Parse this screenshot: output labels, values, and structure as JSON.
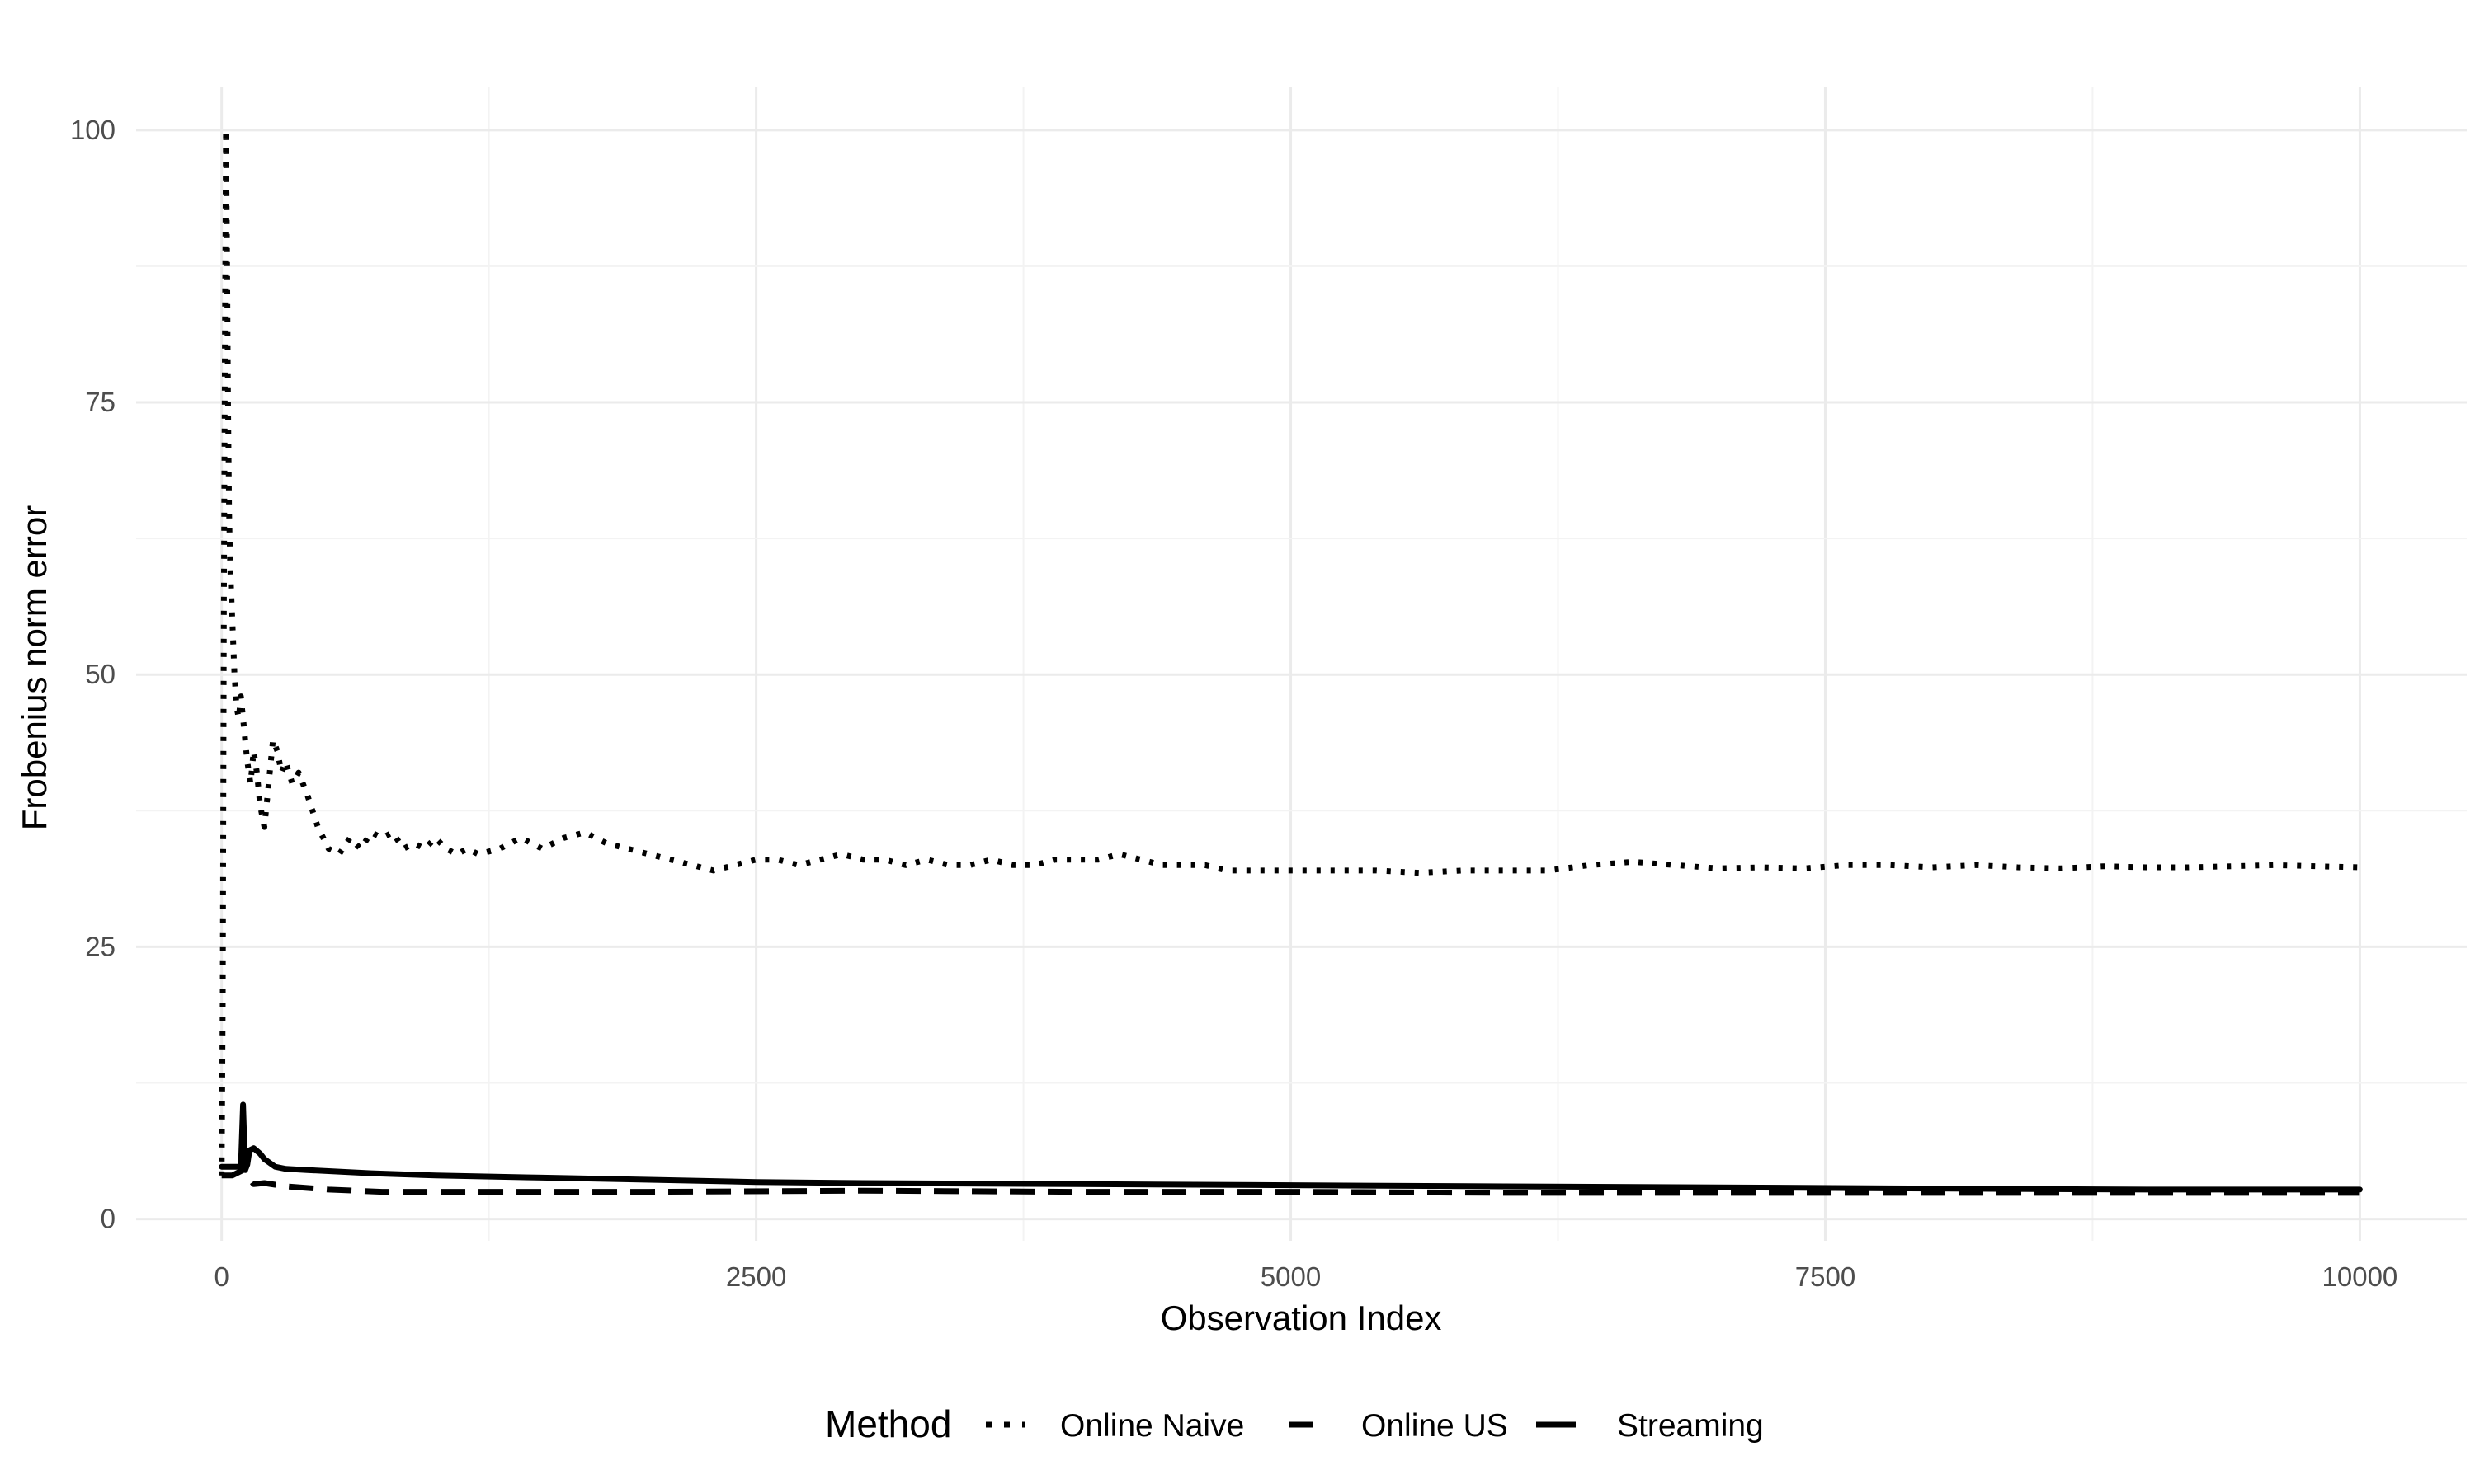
{
  "chart_data": {
    "type": "line",
    "xlabel": "Observation Index",
    "ylabel": "Frobenius norm error",
    "xlim": [
      -400,
      10500
    ],
    "ylim": [
      -2,
      104
    ],
    "x_ticks": [
      0,
      2500,
      5000,
      7500,
      10000
    ],
    "y_ticks": [
      0,
      25,
      50,
      75,
      100
    ],
    "x_tick_labels": [
      "0",
      "2500",
      "5000",
      "7500",
      "10000"
    ],
    "y_tick_labels": [
      "0",
      "25",
      "50",
      "75",
      "100"
    ],
    "grid": true,
    "legend_title": "Method",
    "legend_position": "bottom",
    "series": [
      {
        "name": "Online Naive",
        "linestyle": "dotted",
        "x": [
          0,
          5,
          10,
          15,
          20,
          25,
          30,
          35,
          40,
          50,
          60,
          70,
          80,
          90,
          100,
          110,
          120,
          135,
          150,
          165,
          180,
          200,
          220,
          240,
          260,
          280,
          300,
          330,
          360,
          400,
          450,
          500,
          550,
          600,
          650,
          700,
          750,
          800,
          850,
          900,
          950,
          1000,
          1050,
          1100,
          1150,
          1200,
          1300,
          1400,
          1500,
          1600,
          1700,
          1800,
          1900,
          2000,
          2100,
          2200,
          2300,
          2400,
          2500,
          2600,
          2700,
          2800,
          2900,
          3000,
          3100,
          3200,
          3300,
          3400,
          3500,
          3600,
          3700,
          3800,
          3900,
          4000,
          4100,
          4200,
          4300,
          4400,
          4500,
          4600,
          4700,
          4800,
          4900,
          5000,
          5200,
          5400,
          5600,
          5800,
          6000,
          6200,
          6400,
          6600,
          6800,
          7000,
          7200,
          7400,
          7600,
          7800,
          8000,
          8200,
          8400,
          8600,
          8800,
          9000,
          9200,
          9400,
          9600,
          9800,
          10000
        ],
        "values": [
          4,
          20,
          55,
          80,
          100,
          90,
          75,
          65,
          60,
          55,
          50,
          47,
          46,
          48,
          46,
          44,
          42,
          40,
          43,
          41,
          38,
          36,
          40,
          44,
          43,
          41,
          42,
          40,
          41,
          39,
          36,
          34,
          33.5,
          35,
          34,
          35.5,
          35,
          35.5,
          34,
          34.5,
          34,
          35,
          34,
          33.5,
          34,
          33.5,
          34,
          35,
          34,
          35,
          35.5,
          34.5,
          34,
          33.5,
          33,
          32.5,
          32,
          32.5,
          33,
          33,
          32.5,
          33,
          33.5,
          33,
          33,
          32.5,
          33,
          32.5,
          32.5,
          33,
          32.5,
          32.5,
          33,
          33,
          33,
          33.5,
          33,
          32.5,
          32.5,
          32.5,
          32,
          32,
          32,
          32,
          32,
          32,
          31.8,
          32,
          32,
          32,
          32.5,
          32.8,
          32.5,
          32.2,
          32.3,
          32.2,
          32.5,
          32.5,
          32.3,
          32.5,
          32.3,
          32.2,
          32.4,
          32.3,
          32.3,
          32.4,
          32.5,
          32.4,
          32.3
        ]
      },
      {
        "name": "Online US",
        "linestyle": "dashed",
        "x": [
          0,
          50,
          100,
          150,
          200,
          300,
          500,
          750,
          1000,
          1500,
          2000,
          3000,
          4000,
          5000,
          6000,
          7000,
          8000,
          9000,
          10000
        ],
        "values": [
          4,
          4,
          4.5,
          3.2,
          3.3,
          3.0,
          2.7,
          2.5,
          2.5,
          2.5,
          2.5,
          2.6,
          2.5,
          2.5,
          2.4,
          2.4,
          2.4,
          2.4,
          2.4
        ]
      },
      {
        "name": "Streaming",
        "linestyle": "solid",
        "x": [
          0,
          50,
          90,
          100,
          110,
          120,
          130,
          150,
          180,
          200,
          250,
          300,
          400,
          500,
          700,
          1000,
          1500,
          2000,
          2500,
          3000,
          4000,
          5000,
          6000,
          7000,
          8000,
          9000,
          10000
        ],
        "values": [
          4.8,
          4.8,
          4.8,
          10.5,
          4.5,
          5,
          6.3,
          6.5,
          6,
          5.5,
          4.8,
          4.6,
          4.5,
          4.4,
          4.2,
          4.0,
          3.8,
          3.6,
          3.4,
          3.3,
          3.2,
          3.1,
          3.0,
          2.9,
          2.8,
          2.7,
          2.7
        ]
      }
    ]
  }
}
